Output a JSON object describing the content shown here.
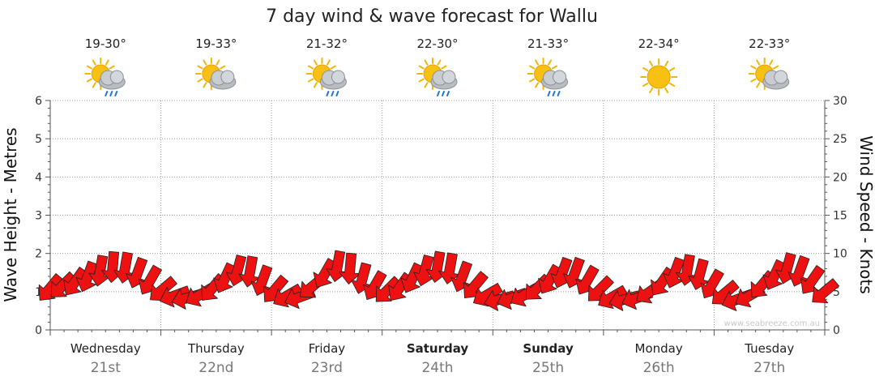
{
  "chart_data": {
    "type": "line",
    "title": "7 day wind & wave forecast for Wallu",
    "ylabel_left": "Wave Height - Metres",
    "ylabel_right": "Wind Speed - Knots",
    "ylim_left": [
      0,
      6
    ],
    "ylim_right": [
      0,
      30
    ],
    "yticks_left": [
      "0",
      "1",
      "2",
      "3",
      "4",
      "5",
      "6"
    ],
    "yticks_right": [
      "0",
      "5",
      "10",
      "15",
      "20",
      "25",
      "30"
    ],
    "grid": true,
    "days": [
      {
        "name": "Wednesday",
        "date": "21st",
        "temp": "19-30°",
        "icon": "sun-cloud-rain-icon",
        "bold": false
      },
      {
        "name": "Thursday",
        "date": "22nd",
        "temp": "19-33°",
        "icon": "sun-cloud-icon",
        "bold": false
      },
      {
        "name": "Friday",
        "date": "23rd",
        "temp": "21-32°",
        "icon": "sun-cloud-rain-icon",
        "bold": false
      },
      {
        "name": "Saturday",
        "date": "24th",
        "temp": "22-30°",
        "icon": "sun-cloud-rain-icon",
        "bold": true
      },
      {
        "name": "Sunday",
        "date": "25th",
        "temp": "21-33°",
        "icon": "sun-cloud-rain-icon",
        "bold": true
      },
      {
        "name": "Monday",
        "date": "26th",
        "temp": "22-34°",
        "icon": "sun-icon",
        "bold": false
      },
      {
        "name": "Tuesday",
        "date": "27th",
        "temp": "22-33°",
        "icon": "sun-cloud-icon",
        "bold": false
      }
    ],
    "series": [
      {
        "name": "",
        "axis": "right",
        "color": "#ee1111",
        "values": [
          5.5,
          5.8,
          6.3,
          7.0,
          7.8,
          8.3,
          8.2,
          7.5,
          6.5,
          5.3,
          4.5,
          4.2,
          4.6,
          5.5,
          6.8,
          7.8,
          7.7,
          6.5,
          5.3,
          4.5,
          4.3,
          5.7,
          7.4,
          8.4,
          8.1,
          6.8,
          5.8,
          5.2,
          5.6,
          6.8,
          7.8,
          8.3,
          8.1,
          7.0,
          5.8,
          4.6,
          4.0,
          4.2,
          4.6,
          5.5,
          6.6,
          7.5,
          7.5,
          6.5,
          5.3,
          4.3,
          4.0,
          4.2,
          5.0,
          6.3,
          7.5,
          7.9,
          7.3,
          6.0,
          4.8,
          4.0,
          4.5,
          5.9,
          7.2,
          8.1,
          7.7,
          6.5,
          5.0
        ]
      }
    ],
    "arrow_directions_deg": [
      130,
      135,
      125,
      110,
      100,
      95,
      100,
      110,
      120,
      140,
      160,
      165,
      150,
      130,
      115,
      105,
      100,
      110,
      130,
      150,
      160,
      140,
      120,
      100,
      95,
      105,
      120,
      135,
      125,
      115,
      105,
      100,
      100,
      110,
      130,
      150,
      165,
      160,
      150,
      135,
      120,
      110,
      110,
      120,
      135,
      150,
      165,
      160,
      145,
      125,
      110,
      100,
      105,
      120,
      140,
      160,
      150,
      130,
      115,
      105,
      110,
      125,
      140
    ]
  },
  "watermark": "www.seabreeze.com.au",
  "colors": {
    "arrow_fill": "#ee1111",
    "arrow_stroke": "#222222",
    "grid": "#999999",
    "axis": "#555555"
  }
}
